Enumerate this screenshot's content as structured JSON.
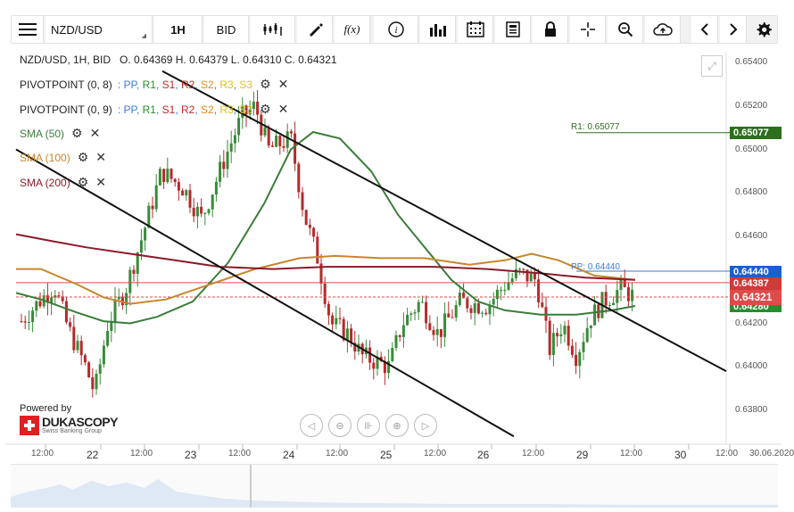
{
  "toolbar": {
    "menu_icon": "hamburger-menu-icon",
    "symbol": "NZD/USD",
    "timeframe": "1H",
    "price_side": "BID",
    "fx_label": "f(x)",
    "icons": [
      "candles-icon",
      "draw-icon",
      "function-icon",
      "info-icon",
      "bars-icon",
      "calendar-icon",
      "news-icon",
      "lock-icon",
      "crosshair-icon",
      "zoom-icon",
      "cloud-upload-icon",
      "prev-icon",
      "next-icon",
      "gear-icon"
    ]
  },
  "ohlc": {
    "header": "NZD/USD, 1H, BID",
    "text": "O. 0.64369 H. 0.64379 L. 0.64310 C. 0.64321"
  },
  "indicators": [
    {
      "name": "PIVOTPOINT (0, 8)",
      "levels": "PP, R1, S1, R2, S2, R3, S3"
    },
    {
      "name": "PIVOTPOINT (0, 9)",
      "levels": "PP, R1, S1, R2, S2, R3, S3"
    },
    {
      "name": "SMA (50)",
      "color": "#3a7d3a"
    },
    {
      "name": "SMA (100)",
      "color": "#c8862a"
    },
    {
      "name": "SMA (200)",
      "color": "#8b1a2b"
    }
  ],
  "chart_labels": {
    "r1": "R1: 0.65077",
    "pp": "PP: 0.64440"
  },
  "price_axis": [
    "0.65400",
    "0.65200",
    "0.65000",
    "0.64800",
    "0.64600",
    "0.64400",
    "0.64200",
    "0.64000",
    "0.63800"
  ],
  "price_tags": {
    "r1": "0.65077",
    "pp": "0.64440",
    "red": "0.64387",
    "current": "0.64321",
    "sma": "0.64280"
  },
  "time_axis": [
    "12:00",
    "22",
    "12:00",
    "23",
    "12:00",
    "24",
    "12:00",
    "25",
    "12:00",
    "26",
    "12:00",
    "29",
    "12:00",
    "30",
    "12:00",
    "30.06.2020"
  ],
  "brand": {
    "powered": "Powered by",
    "name": "DUKASCOPY",
    "tagline": "Swiss Banking Group"
  },
  "colors": {
    "sma50": "#3a7d3a",
    "sma100": "#c8862a",
    "sma200": "#8b1a2b",
    "bull": "#3a8a3a",
    "bear": "#b52a2a",
    "r1": "#2e6e1e",
    "pp": "#3a7bd5",
    "current": "#e04a4a"
  }
}
